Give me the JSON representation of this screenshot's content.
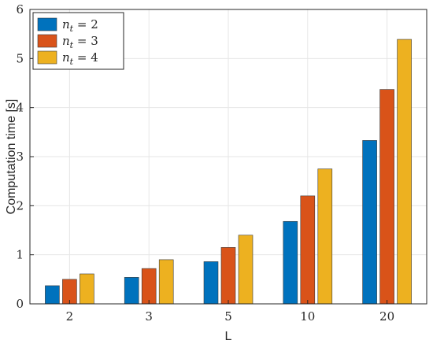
{
  "chart_data": {
    "type": "bar",
    "categories": [
      "2",
      "3",
      "5",
      "10",
      "20"
    ],
    "series": [
      {
        "name": "n_t = 2",
        "sub": "t",
        "value_text": "= 2",
        "color": "#0072BD",
        "values": [
          0.37,
          0.54,
          0.86,
          1.68,
          3.33
        ]
      },
      {
        "name": "n_t = 3",
        "sub": "t",
        "value_text": "= 3",
        "color": "#D95319",
        "values": [
          0.5,
          0.72,
          1.15,
          2.2,
          4.37
        ]
      },
      {
        "name": "n_t = 4",
        "sub": "t",
        "value_text": "= 4",
        "color": "#EDB120",
        "values": [
          0.61,
          0.9,
          1.4,
          2.75,
          5.39
        ]
      }
    ],
    "xlabel": "L",
    "ylabel": "Computation time [s]",
    "ylim": [
      0,
      6
    ],
    "yticks": [
      "0",
      "1",
      "2",
      "3",
      "4",
      "5",
      "6"
    ],
    "grid": true,
    "legend_position": "top-left"
  }
}
